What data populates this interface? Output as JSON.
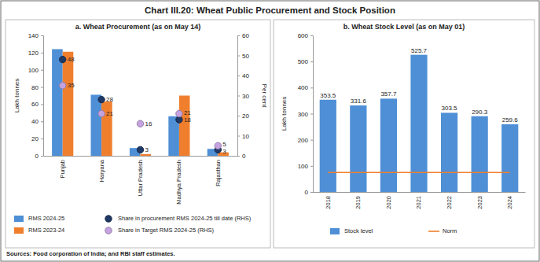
{
  "title": "Chart III.20: Wheat Public Procurement and Stock Position",
  "source": "Sources: Food corporation of India; and RBI staff estimates.",
  "chart_data": [
    {
      "type": "bar",
      "title": "a. Wheat Procurement (as on May 14)",
      "categories": [
        "Punjab",
        "Haryana",
        "Uttar Pradesh",
        "Madhya Pradesh",
        "Rajasthan"
      ],
      "y_label": "Lakh tonnes",
      "y2_label": "Per cent",
      "ylim": [
        0,
        140
      ],
      "yticks": [
        0,
        20,
        40,
        60,
        80,
        100,
        120,
        140
      ],
      "y2lim": [
        0,
        60
      ],
      "y2ticks": [
        0,
        10,
        20,
        30,
        40,
        50,
        60
      ],
      "legend": "bottom",
      "series": [
        {
          "name": "RMS 2024-25",
          "type": "bar",
          "color": "#4e8fd6",
          "values": [
            124,
            71,
            9,
            46,
            8
          ]
        },
        {
          "name": "RMS 2023-24",
          "type": "bar",
          "color": "#f07f2d",
          "values": [
            121,
            63,
            2,
            70,
            4
          ]
        },
        {
          "name": "Share in procurement RMS 2024-25 till date (RHS)",
          "type": "scatter",
          "axis": "y2",
          "marker": "circle",
          "color": "#1f3864",
          "data_labels": true,
          "values": [
            48,
            28,
            3,
            18,
            3
          ]
        },
        {
          "name": "Share in Target RMS 2024-25 (RHS)",
          "type": "scatter",
          "axis": "y2",
          "marker": "circle",
          "color": "#c5a3e0",
          "data_labels": true,
          "values": [
            35,
            21,
            16,
            21,
            5
          ]
        }
      ]
    },
    {
      "type": "bar",
      "title": "b. Wheat Stock Level (as on May 01)",
      "categories": [
        "2018",
        "2019",
        "2020",
        "2021",
        "2022",
        "2023",
        "2024"
      ],
      "y_label": "Lakh tonnes",
      "ylim": [
        0,
        600
      ],
      "yticks": [
        0,
        100,
        200,
        300,
        400,
        500,
        600
      ],
      "legend": "bottom",
      "series": [
        {
          "name": "Stock level",
          "type": "bar",
          "color": "#4e8fd6",
          "data_labels": true,
          "values": [
            353.5,
            331.6,
            357.7,
            525.7,
            303.5,
            290.3,
            259.6
          ]
        },
        {
          "name": "Norm",
          "type": "line",
          "color": "#f07f2d",
          "line_style": "solid",
          "values": [
            74.6,
            74.6,
            74.6,
            74.6,
            74.6,
            74.6,
            74.6
          ]
        }
      ]
    }
  ]
}
